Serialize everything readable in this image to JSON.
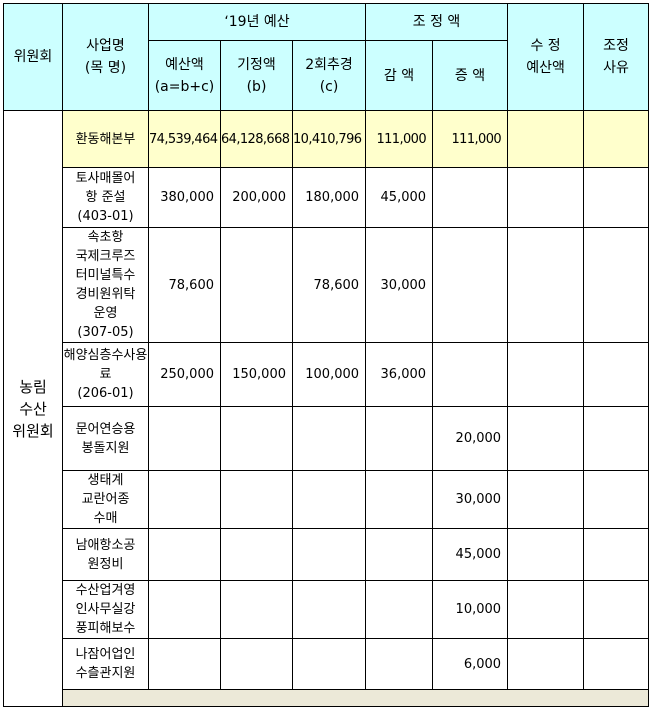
{
  "header": {
    "committee": "위원회",
    "project": "사업명\n(목 명)",
    "budget_group": "‘19년 예산",
    "budget": "예산액\n(a=b+c)",
    "existing": "기정액\n(b)",
    "supplementary": "2회추경\n(c)",
    "adjust_group": "조 정 액",
    "decrease": "감 액",
    "increase": "증 액",
    "revised": "수  정\n예산액",
    "reason": "조정\n사유"
  },
  "committee_name": "농림\n수산\n위원회",
  "colors": {
    "header_bg": "#ccffff",
    "total_bg": "#ffffcc",
    "footer_bg": "#ece9d8"
  },
  "rows": [
    {
      "name": "환동해본부",
      "budget": "74,539,464",
      "existing": "64,128,668",
      "supp": "10,410,796",
      "decrease": "111,000",
      "increase": "111,000",
      "revised": "",
      "reason": ""
    },
    {
      "name": "토사매몰어\n항 준설\n(403-01)",
      "budget": "380,000",
      "existing": "200,000",
      "supp": "180,000",
      "decrease": "45,000",
      "increase": "",
      "revised": "",
      "reason": ""
    },
    {
      "name": "속초항\n국제크루즈\n터미널특수\n경비원위탁\n운영\n(307-05)",
      "budget": "78,600",
      "existing": "",
      "supp": "78,600",
      "decrease": "30,000",
      "increase": "",
      "revised": "",
      "reason": ""
    },
    {
      "name": "해양심층수사용\n료\n(206-01)",
      "budget": "250,000",
      "existing": "150,000",
      "supp": "100,000",
      "decrease": "36,000",
      "increase": "",
      "revised": "",
      "reason": ""
    },
    {
      "name": "문어연승용\n봉돌지원",
      "budget": "",
      "existing": "",
      "supp": "",
      "decrease": "",
      "increase": "20,000",
      "revised": "",
      "reason": ""
    },
    {
      "name": "생태계\n교란어종\n수매",
      "budget": "",
      "existing": "",
      "supp": "",
      "decrease": "",
      "increase": "30,000",
      "revised": "",
      "reason": ""
    },
    {
      "name": "남애항소공\n원정비",
      "budget": "",
      "existing": "",
      "supp": "",
      "decrease": "",
      "increase": "45,000",
      "revised": "",
      "reason": ""
    },
    {
      "name": "수산업겨영\n인사무실강\n풍피해보수",
      "budget": "",
      "existing": "",
      "supp": "",
      "decrease": "",
      "increase": "10,000",
      "revised": "",
      "reason": ""
    },
    {
      "name": "나잠어업인\n수츨관지원",
      "budget": "",
      "existing": "",
      "supp": "",
      "decrease": "",
      "increase": "6,000",
      "revised": "",
      "reason": ""
    }
  ]
}
